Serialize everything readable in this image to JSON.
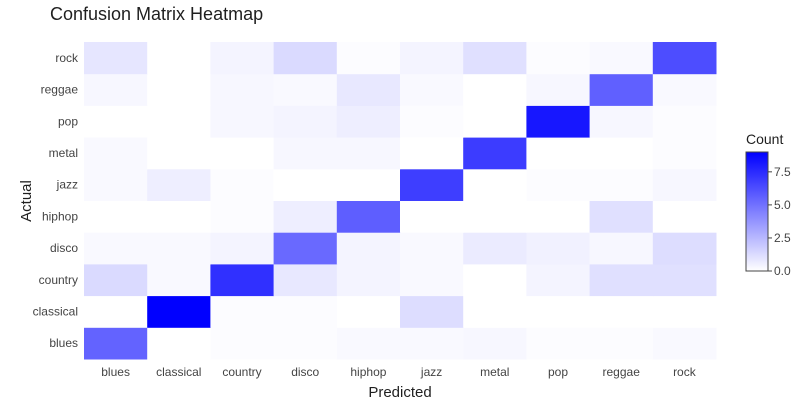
{
  "chart_data": {
    "type": "heatmap",
    "title": "Confusion Matrix Heatmap",
    "xlabel": "Predicted",
    "ylabel": "Actual",
    "x_categories": [
      "blues",
      "classical",
      "country",
      "disco",
      "hiphop",
      "jazz",
      "metal",
      "pop",
      "reggae",
      "rock"
    ],
    "y_categories": [
      "blues",
      "classical",
      "country",
      "disco",
      "hiphop",
      "jazz",
      "metal",
      "pop",
      "reggae",
      "rock"
    ],
    "z": [
      [
        5.5,
        0,
        0.1,
        0.1,
        0.2,
        0.2,
        0.3,
        0.1,
        0.1,
        0.2
      ],
      [
        0,
        9,
        0.1,
        0.1,
        0,
        1.2,
        0,
        0,
        0,
        0
      ],
      [
        1.3,
        0.2,
        7.3,
        0.8,
        0.4,
        0.2,
        0,
        0.4,
        1.1,
        1.1
      ],
      [
        0.2,
        0.2,
        0.4,
        5.3,
        0.4,
        0.2,
        0.7,
        0.5,
        0.3,
        1.2
      ],
      [
        0,
        0,
        0.1,
        0.6,
        5.7,
        0,
        0,
        0,
        1.1,
        0
      ],
      [
        0.2,
        0.6,
        0.1,
        0,
        0,
        6.8,
        0,
        0.1,
        0.1,
        0.3
      ],
      [
        0.2,
        0,
        0,
        0.3,
        0.3,
        0,
        6.9,
        0,
        0,
        0.1
      ],
      [
        0,
        0,
        0.3,
        0.4,
        0.6,
        0.1,
        0,
        8.2,
        0.3,
        0.1
      ],
      [
        0.3,
        0,
        0.3,
        0.2,
        0.8,
        0.2,
        0,
        0.3,
        5.6,
        0.2
      ],
      [
        0.9,
        0,
        0.4,
        1.3,
        0.1,
        0.4,
        1.1,
        0.1,
        0.2,
        6.3
      ]
    ],
    "zlim": [
      0,
      9
    ],
    "colorscale": [
      "#ffffff",
      "#0000ff"
    ],
    "colorbar": {
      "title": "Count",
      "ticks": [
        0,
        2.5,
        5,
        7.5
      ],
      "tick_labels": [
        "0.0",
        "2.5",
        "5.0",
        "7.5"
      ]
    },
    "grid": false,
    "legend": "right"
  }
}
